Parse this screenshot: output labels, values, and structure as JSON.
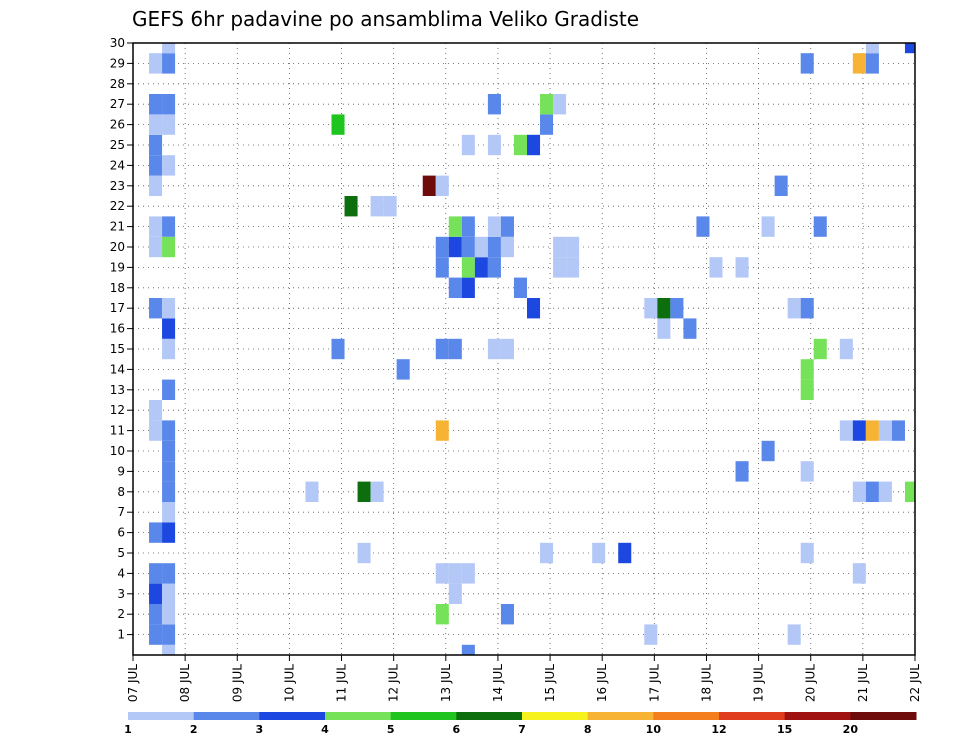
{
  "chart_data": {
    "type": "heatmap",
    "title": "GEFS 6hr padavine po ansamblima Veliko Gradiste",
    "xlabel": "",
    "ylabel": "",
    "x_tick_labels": [
      "07 JUL",
      "08 JUL",
      "09 JUL",
      "10 JUL",
      "11 JUL",
      "12 JUL",
      "13 JUL",
      "14 JUL",
      "15 JUL",
      "16 JUL",
      "17 JUL",
      "18 JUL",
      "19 JUL",
      "20 JUL",
      "21 JUL",
      "22 JUL"
    ],
    "y_tick_labels": [
      "1",
      "2",
      "3",
      "4",
      "5",
      "6",
      "7",
      "8",
      "9",
      "10",
      "11",
      "12",
      "13",
      "14",
      "15",
      "16",
      "17",
      "18",
      "19",
      "20",
      "21",
      "22",
      "23",
      "24",
      "25",
      "26",
      "27",
      "28",
      "29",
      "30"
    ],
    "xlim_days": [
      0,
      15
    ],
    "ylim_members": [
      0,
      30
    ],
    "time_step_days": 0.25,
    "grid": true,
    "legend_placement": "bottom",
    "color_bins": [
      {
        "min": 1,
        "max": 2,
        "color": "#b4c8f8"
      },
      {
        "min": 2,
        "max": 3,
        "color": "#5a87ea"
      },
      {
        "min": 3,
        "max": 4,
        "color": "#1c47e0"
      },
      {
        "min": 4,
        "max": 5,
        "color": "#76e25a"
      },
      {
        "min": 5,
        "max": 6,
        "color": "#1fc41f"
      },
      {
        "min": 6,
        "max": 7,
        "color": "#0c6e0c"
      },
      {
        "min": 7,
        "max": 8,
        "color": "#f6f21e"
      },
      {
        "min": 8,
        "max": 10,
        "color": "#f7b434"
      },
      {
        "min": 10,
        "max": 12,
        "color": "#f47d1e"
      },
      {
        "min": 12,
        "max": 15,
        "color": "#e03c1e"
      },
      {
        "min": 15,
        "max": 20,
        "color": "#a01212"
      },
      {
        "min": 20,
        "max": null,
        "color": "#6e0c0c"
      }
    ],
    "legend_labels": [
      "1",
      "2",
      "3",
      "4",
      "5",
      "6",
      "7",
      "8",
      "10",
      "12",
      "15",
      "20"
    ],
    "cells": [
      {
        "day": 0.25,
        "member": 1,
        "value": 2.5
      },
      {
        "day": 0.25,
        "member": 2,
        "value": 2.5
      },
      {
        "day": 0.25,
        "member": 3,
        "value": 3.5
      },
      {
        "day": 0.25,
        "member": 4,
        "value": 2.5
      },
      {
        "day": 0.25,
        "member": 6,
        "value": 2.5
      },
      {
        "day": 0.25,
        "member": 11,
        "value": 1.5
      },
      {
        "day": 0.25,
        "member": 12,
        "value": 1.5
      },
      {
        "day": 0.25,
        "member": 17,
        "value": 2.5
      },
      {
        "day": 0.25,
        "member": 20,
        "value": 1.5
      },
      {
        "day": 0.25,
        "member": 21,
        "value": 1.5
      },
      {
        "day": 0.25,
        "member": 23,
        "value": 1.5
      },
      {
        "day": 0.25,
        "member": 24,
        "value": 2.5
      },
      {
        "day": 0.25,
        "member": 25,
        "value": 2.5
      },
      {
        "day": 0.25,
        "member": 26,
        "value": 1.5
      },
      {
        "day": 0.25,
        "member": 27,
        "value": 2.5
      },
      {
        "day": 0.25,
        "member": 29,
        "value": 1.5
      },
      {
        "day": 0.5,
        "member": 0,
        "value": 1.5
      },
      {
        "day": 0.5,
        "member": 1,
        "value": 2.5
      },
      {
        "day": 0.5,
        "member": 2,
        "value": 1.5
      },
      {
        "day": 0.5,
        "member": 3,
        "value": 1.5
      },
      {
        "day": 0.5,
        "member": 4,
        "value": 2.5
      },
      {
        "day": 0.5,
        "member": 6,
        "value": 3.5
      },
      {
        "day": 0.5,
        "member": 7,
        "value": 1.5
      },
      {
        "day": 0.5,
        "member": 8,
        "value": 2.5
      },
      {
        "day": 0.5,
        "member": 9,
        "value": 2.5
      },
      {
        "day": 0.5,
        "member": 10,
        "value": 2.5
      },
      {
        "day": 0.5,
        "member": 11,
        "value": 2.5
      },
      {
        "day": 0.5,
        "member": 13,
        "value": 2.5
      },
      {
        "day": 0.5,
        "member": 15,
        "value": 1.5
      },
      {
        "day": 0.5,
        "member": 16,
        "value": 3.5
      },
      {
        "day": 0.5,
        "member": 17,
        "value": 1.5
      },
      {
        "day": 0.5,
        "member": 20,
        "value": 4.5
      },
      {
        "day": 0.5,
        "member": 21,
        "value": 2.5
      },
      {
        "day": 0.5,
        "member": 24,
        "value": 1.5
      },
      {
        "day": 0.5,
        "member": 26,
        "value": 1.5
      },
      {
        "day": 0.5,
        "member": 27,
        "value": 2.5
      },
      {
        "day": 0.5,
        "member": 29,
        "value": 2.5
      },
      {
        "day": 0.5,
        "member": 30,
        "value": 1.5
      },
      {
        "day": 3.25,
        "member": 8,
        "value": 1.5
      },
      {
        "day": 3.75,
        "member": 15,
        "value": 2.5
      },
      {
        "day": 3.75,
        "member": 26,
        "value": 5.5
      },
      {
        "day": 4.0,
        "member": 22,
        "value": 6.5
      },
      {
        "day": 4.25,
        "member": 5,
        "value": 1.5
      },
      {
        "day": 4.25,
        "member": 8,
        "value": 6.5
      },
      {
        "day": 4.5,
        "member": 8,
        "value": 1.5
      },
      {
        "day": 4.5,
        "member": 22,
        "value": 1.5
      },
      {
        "day": 4.75,
        "member": 22,
        "value": 1.5
      },
      {
        "day": 5.0,
        "member": 14,
        "value": 2.5
      },
      {
        "day": 5.5,
        "member": 23,
        "value": 25
      },
      {
        "day": 5.75,
        "member": 2,
        "value": 4.5
      },
      {
        "day": 5.75,
        "member": 4,
        "value": 1.5
      },
      {
        "day": 5.75,
        "member": 11,
        "value": 9
      },
      {
        "day": 5.75,
        "member": 15,
        "value": 2.5
      },
      {
        "day": 5.75,
        "member": 19,
        "value": 2.5
      },
      {
        "day": 5.75,
        "member": 20,
        "value": 2.5
      },
      {
        "day": 5.75,
        "member": 23,
        "value": 1.5
      },
      {
        "day": 6.0,
        "member": 3,
        "value": 1.5
      },
      {
        "day": 6.0,
        "member": 4,
        "value": 1.5
      },
      {
        "day": 6.0,
        "member": 15,
        "value": 2.5
      },
      {
        "day": 6.0,
        "member": 18,
        "value": 2.5
      },
      {
        "day": 6.0,
        "member": 20,
        "value": 3.5
      },
      {
        "day": 6.0,
        "member": 21,
        "value": 4.5
      },
      {
        "day": 6.25,
        "member": 0,
        "value": 2.5
      },
      {
        "day": 6.25,
        "member": 4,
        "value": 1.5
      },
      {
        "day": 6.25,
        "member": 18,
        "value": 3.5
      },
      {
        "day": 6.25,
        "member": 19,
        "value": 4.5
      },
      {
        "day": 6.25,
        "member": 20,
        "value": 2.5
      },
      {
        "day": 6.25,
        "member": 21,
        "value": 2.5
      },
      {
        "day": 6.25,
        "member": 25,
        "value": 1.5
      },
      {
        "day": 6.5,
        "member": 19,
        "value": 3.5
      },
      {
        "day": 6.5,
        "member": 20,
        "value": 1.5
      },
      {
        "day": 6.75,
        "member": 15,
        "value": 1.5
      },
      {
        "day": 6.75,
        "member": 19,
        "value": 2.5
      },
      {
        "day": 6.75,
        "member": 20,
        "value": 2.5
      },
      {
        "day": 6.75,
        "member": 21,
        "value": 1.5
      },
      {
        "day": 6.75,
        "member": 25,
        "value": 1.5
      },
      {
        "day": 6.75,
        "member": 27,
        "value": 2.5
      },
      {
        "day": 7.0,
        "member": 2,
        "value": 2.5
      },
      {
        "day": 7.0,
        "member": 15,
        "value": 1.5
      },
      {
        "day": 7.0,
        "member": 20,
        "value": 1.5
      },
      {
        "day": 7.0,
        "member": 21,
        "value": 2.5
      },
      {
        "day": 7.25,
        "member": 18,
        "value": 2.5
      },
      {
        "day": 7.25,
        "member": 25,
        "value": 4.5
      },
      {
        "day": 7.5,
        "member": 17,
        "value": 3.5
      },
      {
        "day": 7.5,
        "member": 25,
        "value": 3.5
      },
      {
        "day": 7.75,
        "member": 5,
        "value": 1.5
      },
      {
        "day": 7.75,
        "member": 26,
        "value": 2.5
      },
      {
        "day": 7.75,
        "member": 27,
        "value": 4.5
      },
      {
        "day": 8.0,
        "member": 19,
        "value": 1.5
      },
      {
        "day": 8.0,
        "member": 20,
        "value": 1.5
      },
      {
        "day": 8.0,
        "member": 27,
        "value": 1.5
      },
      {
        "day": 8.25,
        "member": 19,
        "value": 1.5
      },
      {
        "day": 8.25,
        "member": 20,
        "value": 1.5
      },
      {
        "day": 8.75,
        "member": 5,
        "value": 1.5
      },
      {
        "day": 9.25,
        "member": 5,
        "value": 3.5
      },
      {
        "day": 9.75,
        "member": 1,
        "value": 1.5
      },
      {
        "day": 9.75,
        "member": 17,
        "value": 1.5
      },
      {
        "day": 10.0,
        "member": 16,
        "value": 1.5
      },
      {
        "day": 10.0,
        "member": 17,
        "value": 6.5
      },
      {
        "day": 10.25,
        "member": 17,
        "value": 2.5
      },
      {
        "day": 10.5,
        "member": 16,
        "value": 2.5
      },
      {
        "day": 10.75,
        "member": 21,
        "value": 2.5
      },
      {
        "day": 11.0,
        "member": 19,
        "value": 1.5
      },
      {
        "day": 11.5,
        "member": 9,
        "value": 2.5
      },
      {
        "day": 11.5,
        "member": 19,
        "value": 1.5
      },
      {
        "day": 12.0,
        "member": 10,
        "value": 2.5
      },
      {
        "day": 12.0,
        "member": 21,
        "value": 1.5
      },
      {
        "day": 12.25,
        "member": 23,
        "value": 2.5
      },
      {
        "day": 12.5,
        "member": 1,
        "value": 1.5
      },
      {
        "day": 12.5,
        "member": 17,
        "value": 1.5
      },
      {
        "day": 12.75,
        "member": 5,
        "value": 1.5
      },
      {
        "day": 12.75,
        "member": 9,
        "value": 1.5
      },
      {
        "day": 12.75,
        "member": 13,
        "value": 4.5
      },
      {
        "day": 12.75,
        "member": 14,
        "value": 4.5
      },
      {
        "day": 12.75,
        "member": 17,
        "value": 2.5
      },
      {
        "day": 12.75,
        "member": 29,
        "value": 2.5
      },
      {
        "day": 13.0,
        "member": 15,
        "value": 4.5
      },
      {
        "day": 13.0,
        "member": 21,
        "value": 2.5
      },
      {
        "day": 13.5,
        "member": 11,
        "value": 1.5
      },
      {
        "day": 13.5,
        "member": 15,
        "value": 1.5
      },
      {
        "day": 13.75,
        "member": 4,
        "value": 1.5
      },
      {
        "day": 13.75,
        "member": 8,
        "value": 1.5
      },
      {
        "day": 13.75,
        "member": 11,
        "value": 3.5
      },
      {
        "day": 13.75,
        "member": 29,
        "value": 9
      },
      {
        "day": 14.0,
        "member": 8,
        "value": 2.5
      },
      {
        "day": 14.0,
        "member": 11,
        "value": 9
      },
      {
        "day": 14.0,
        "member": 29,
        "value": 2.5
      },
      {
        "day": 14.0,
        "member": 30,
        "value": 1.5
      },
      {
        "day": 14.25,
        "member": 8,
        "value": 1.5
      },
      {
        "day": 14.25,
        "member": 11,
        "value": 1.5
      },
      {
        "day": 14.5,
        "member": 11,
        "value": 2.5
      },
      {
        "day": 14.75,
        "member": 8,
        "value": 4.5
      },
      {
        "day": 14.75,
        "member": 30,
        "value": 3.5
      }
    ]
  }
}
